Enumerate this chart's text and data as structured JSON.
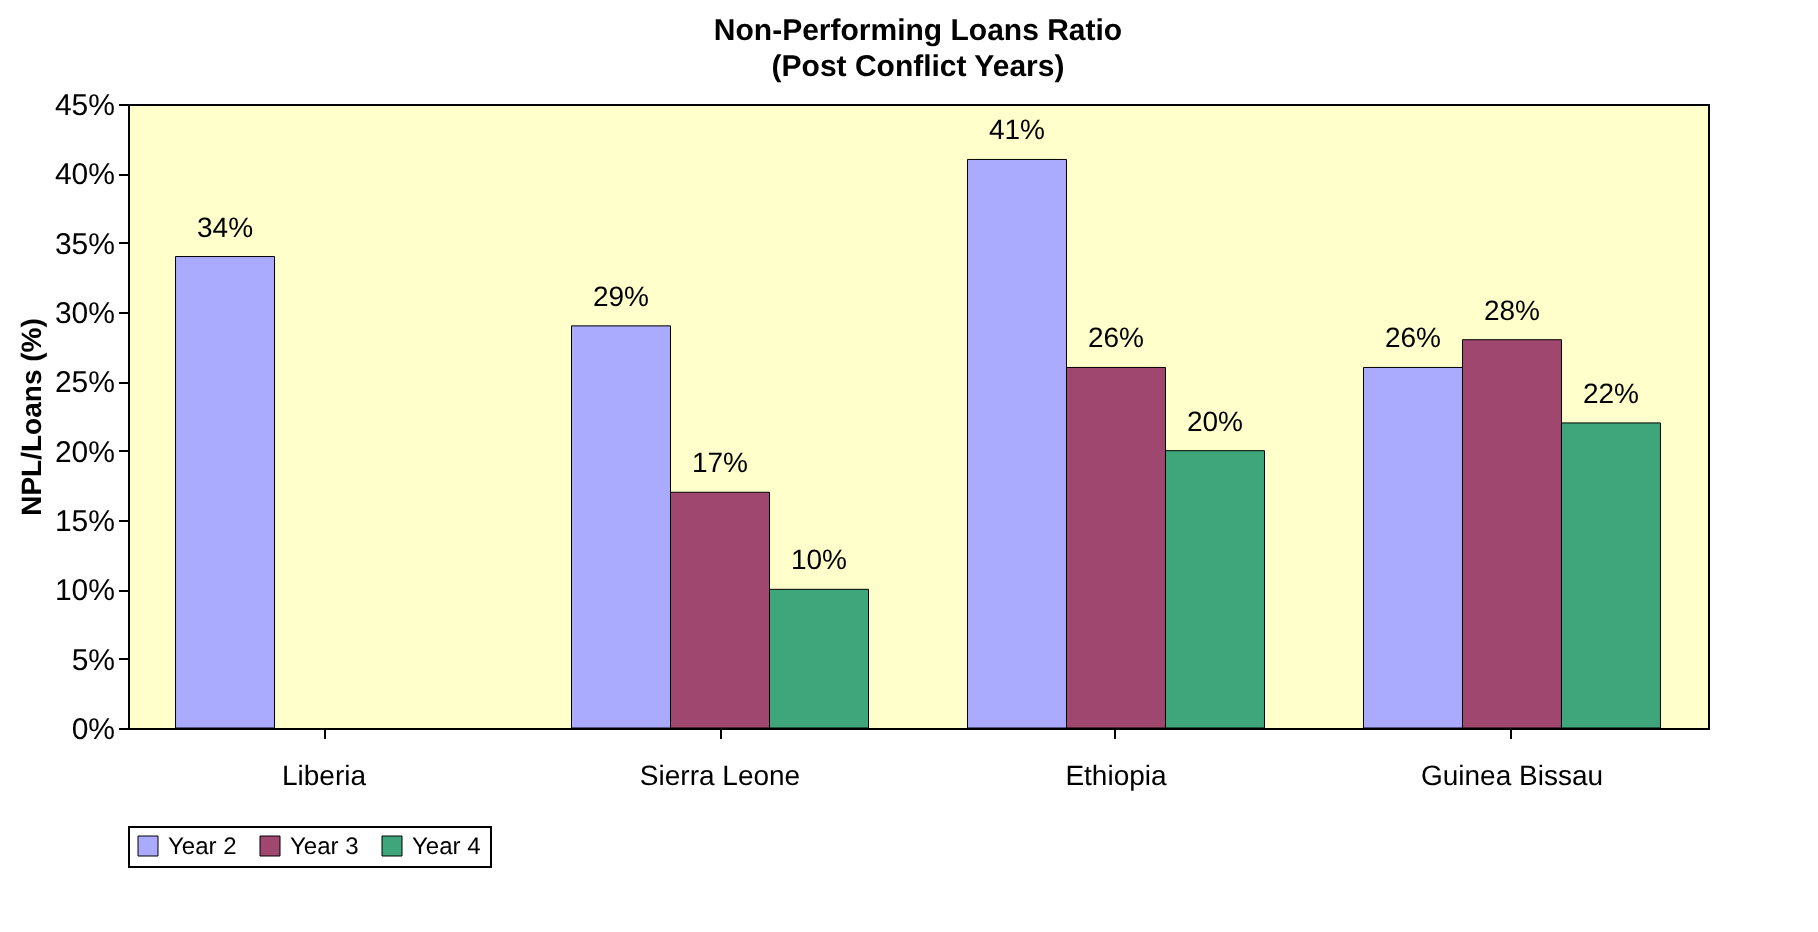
{
  "chart_data": {
    "type": "bar",
    "title": "Non-Performing Loans Ratio",
    "subtitle": "(Post Conflict Years)",
    "ylabel": "NPL/Loans (%)",
    "categories": [
      "Liberia",
      "Sierra Leone",
      "Ethiopia",
      "Guinea Bissau"
    ],
    "series": [
      {
        "name": "Year 2",
        "color": "#aaaaff",
        "values": [
          34,
          29,
          41,
          26
        ],
        "value_labels": [
          "34%",
          "29%",
          "41%",
          "26%"
        ]
      },
      {
        "name": "Year 3",
        "color": "#a0476f",
        "values": [
          null,
          17,
          26,
          28
        ],
        "value_labels": [
          null,
          "17%",
          "26%",
          "28%"
        ]
      },
      {
        "name": "Year 4",
        "color": "#3fa57a",
        "values": [
          null,
          10,
          20,
          22
        ],
        "value_labels": [
          null,
          "10%",
          "20%",
          "22%"
        ]
      }
    ],
    "ylim": [
      0,
      45
    ],
    "yticks": [
      {
        "value": 0,
        "label": "0%"
      },
      {
        "value": 5,
        "label": "5%"
      },
      {
        "value": 10,
        "label": "10%"
      },
      {
        "value": 15,
        "label": "15%"
      },
      {
        "value": 20,
        "label": "20%"
      },
      {
        "value": 25,
        "label": "25%"
      },
      {
        "value": 30,
        "label": "30%"
      },
      {
        "value": 35,
        "label": "35%"
      },
      {
        "value": 40,
        "label": "40%"
      },
      {
        "value": 45,
        "label": "45%"
      }
    ],
    "grid": false,
    "legend": "bottom"
  }
}
